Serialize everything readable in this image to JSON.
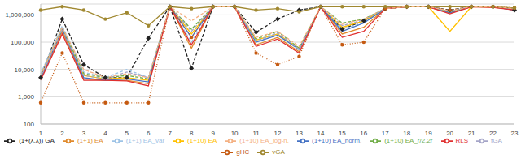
{
  "chart_data": {
    "type": "line",
    "log": "y",
    "grid": true,
    "legend": "bottom",
    "categories": [
      "1",
      "2",
      "3",
      "4",
      "5",
      "6",
      "7",
      "8",
      "9",
      "10",
      "11",
      "12",
      "13",
      "14",
      "15",
      "16",
      "17",
      "18",
      "19",
      "20",
      "21",
      "22",
      "23"
    ],
    "ylim": [
      100,
      2500000
    ],
    "yticks": [
      100,
      {
        "value": 1000,
        "label": "1,000"
      },
      {
        "value": 10000,
        "label": "10,000"
      },
      {
        "value": 100000,
        "label": "100,000"
      },
      {
        "value": 1000000,
        "label": "1,000,000"
      }
    ],
    "series": [
      {
        "name": "(1+(λ,λ)) GA",
        "color": "#222222",
        "line_style": "dashed",
        "marker": "diamond",
        "values": [
          5000,
          700000,
          15000,
          5000,
          5000,
          140000,
          2000000,
          11000,
          2000000,
          2000000,
          230000,
          700000,
          1500000,
          2000000,
          300000,
          600000,
          1700000,
          2000000,
          2000000,
          1500000,
          2000000,
          2000000,
          1500000
        ]
      },
      {
        "name": "(1+1) EA",
        "color": "#e08a2c",
        "line_style": "solid",
        "values": [
          4500,
          250000,
          4500,
          4000,
          4000,
          3000,
          2000000,
          60000,
          2000000,
          2000000,
          80000,
          150000,
          45000,
          2000000,
          200000,
          350000,
          1700000,
          2000000,
          2000000,
          1200000,
          2000000,
          1900000,
          1600000
        ]
      },
      {
        "name": "(1+1) EA_var",
        "color": "#9dc3e6",
        "line_style": "dashed",
        "values": [
          7000,
          400000,
          8000,
          5000,
          10000,
          5000,
          2000000,
          100000,
          2000000,
          2000000,
          100000,
          200000,
          50000,
          2000000,
          300000,
          500000,
          1700000,
          2000000,
          2000000,
          1300000,
          2000000,
          2000000,
          1600000
        ]
      },
      {
        "name": "(1+10) EA",
        "color": "#ffc000",
        "line_style": "solid",
        "values": [
          5000,
          300000,
          6000,
          4500,
          5000,
          4000,
          2000000,
          200000,
          2000000,
          2000000,
          120000,
          200000,
          60000,
          2000000,
          350000,
          600000,
          1700000,
          2000000,
          2000000,
          250000,
          2000000,
          2000000,
          1600000
        ]
      },
      {
        "name": "(1+10) EA_norm.",
        "color": "#4472c4",
        "line_style": "solid",
        "values": [
          4500,
          300000,
          5000,
          4000,
          4500,
          3500,
          2000000,
          150000,
          2000000,
          2000000,
          100000,
          180000,
          55000,
          2000000,
          250000,
          500000,
          1700000,
          2000000,
          2000000,
          1200000,
          2000000,
          2000000,
          1500000
        ]
      },
      {
        "name": "(1+10) EA_r/2,2r",
        "color": "#70ad47",
        "line_style": "dashed",
        "values": [
          6000,
          350000,
          7000,
          5000,
          6000,
          4500,
          2000000,
          300000,
          2000000,
          2000000,
          130000,
          250000,
          60000,
          2000000,
          500000,
          700000,
          1700000,
          2000000,
          2000000,
          1300000,
          2000000,
          2000000,
          1600000
        ]
      },
      {
        "name": "fGA",
        "color": "#a5a5c8",
        "line_style": "dashed",
        "values": [
          5000,
          300000,
          6000,
          4500,
          8000,
          5000,
          2000000,
          250000,
          2000000,
          2000000,
          110000,
          220000,
          55000,
          2000000,
          400000,
          650000,
          1700000,
          2000000,
          2000000,
          1300000,
          2000000,
          2000000,
          1600000
        ]
      },
      {
        "name": "gHC",
        "color": "#c55a11",
        "line_style": "dotted",
        "marker": "circle",
        "values": [
          600,
          40000,
          600,
          600,
          600,
          600,
          2000000,
          150000,
          2000000,
          2000000,
          40000,
          15000,
          30000,
          2000000,
          80000,
          100000,
          1700000,
          2000000,
          2000000,
          1500000,
          2000000,
          2000000,
          1800000
        ]
      },
      {
        "name": "RLS",
        "color": "#e03030",
        "line_style": "solid",
        "values": [
          4000,
          200000,
          4000,
          4000,
          3800,
          2500,
          2000000,
          80000,
          2000000,
          2000000,
          70000,
          130000,
          40000,
          2000000,
          150000,
          250000,
          1700000,
          2000000,
          2000000,
          1100000,
          2000000,
          1900000,
          1500000
        ]
      },
      {
        "name": "vGA",
        "color": "#a08830",
        "line_style": "solid",
        "marker": "circle",
        "values": [
          1500000,
          2000000,
          1500000,
          700000,
          1200000,
          400000,
          2000000,
          1700000,
          2000000,
          2000000,
          1500000,
          1700000,
          1300000,
          2000000,
          2000000,
          2000000,
          2000000,
          2000000,
          2000000,
          2000000,
          2000000,
          2000000,
          1800000
        ]
      },
      {
        "name": "(1+10) EA_log-n.",
        "color": "#f4b183",
        "line_style": "dashed",
        "values": [
          6000,
          350000,
          10000,
          5000,
          7000,
          5000,
          2000000,
          600000,
          2000000,
          2000000,
          150000,
          250000,
          70000,
          2000000,
          450000,
          700000,
          1700000,
          2000000,
          2000000,
          1400000,
          2000000,
          2000000,
          1700000
        ]
      }
    ]
  }
}
